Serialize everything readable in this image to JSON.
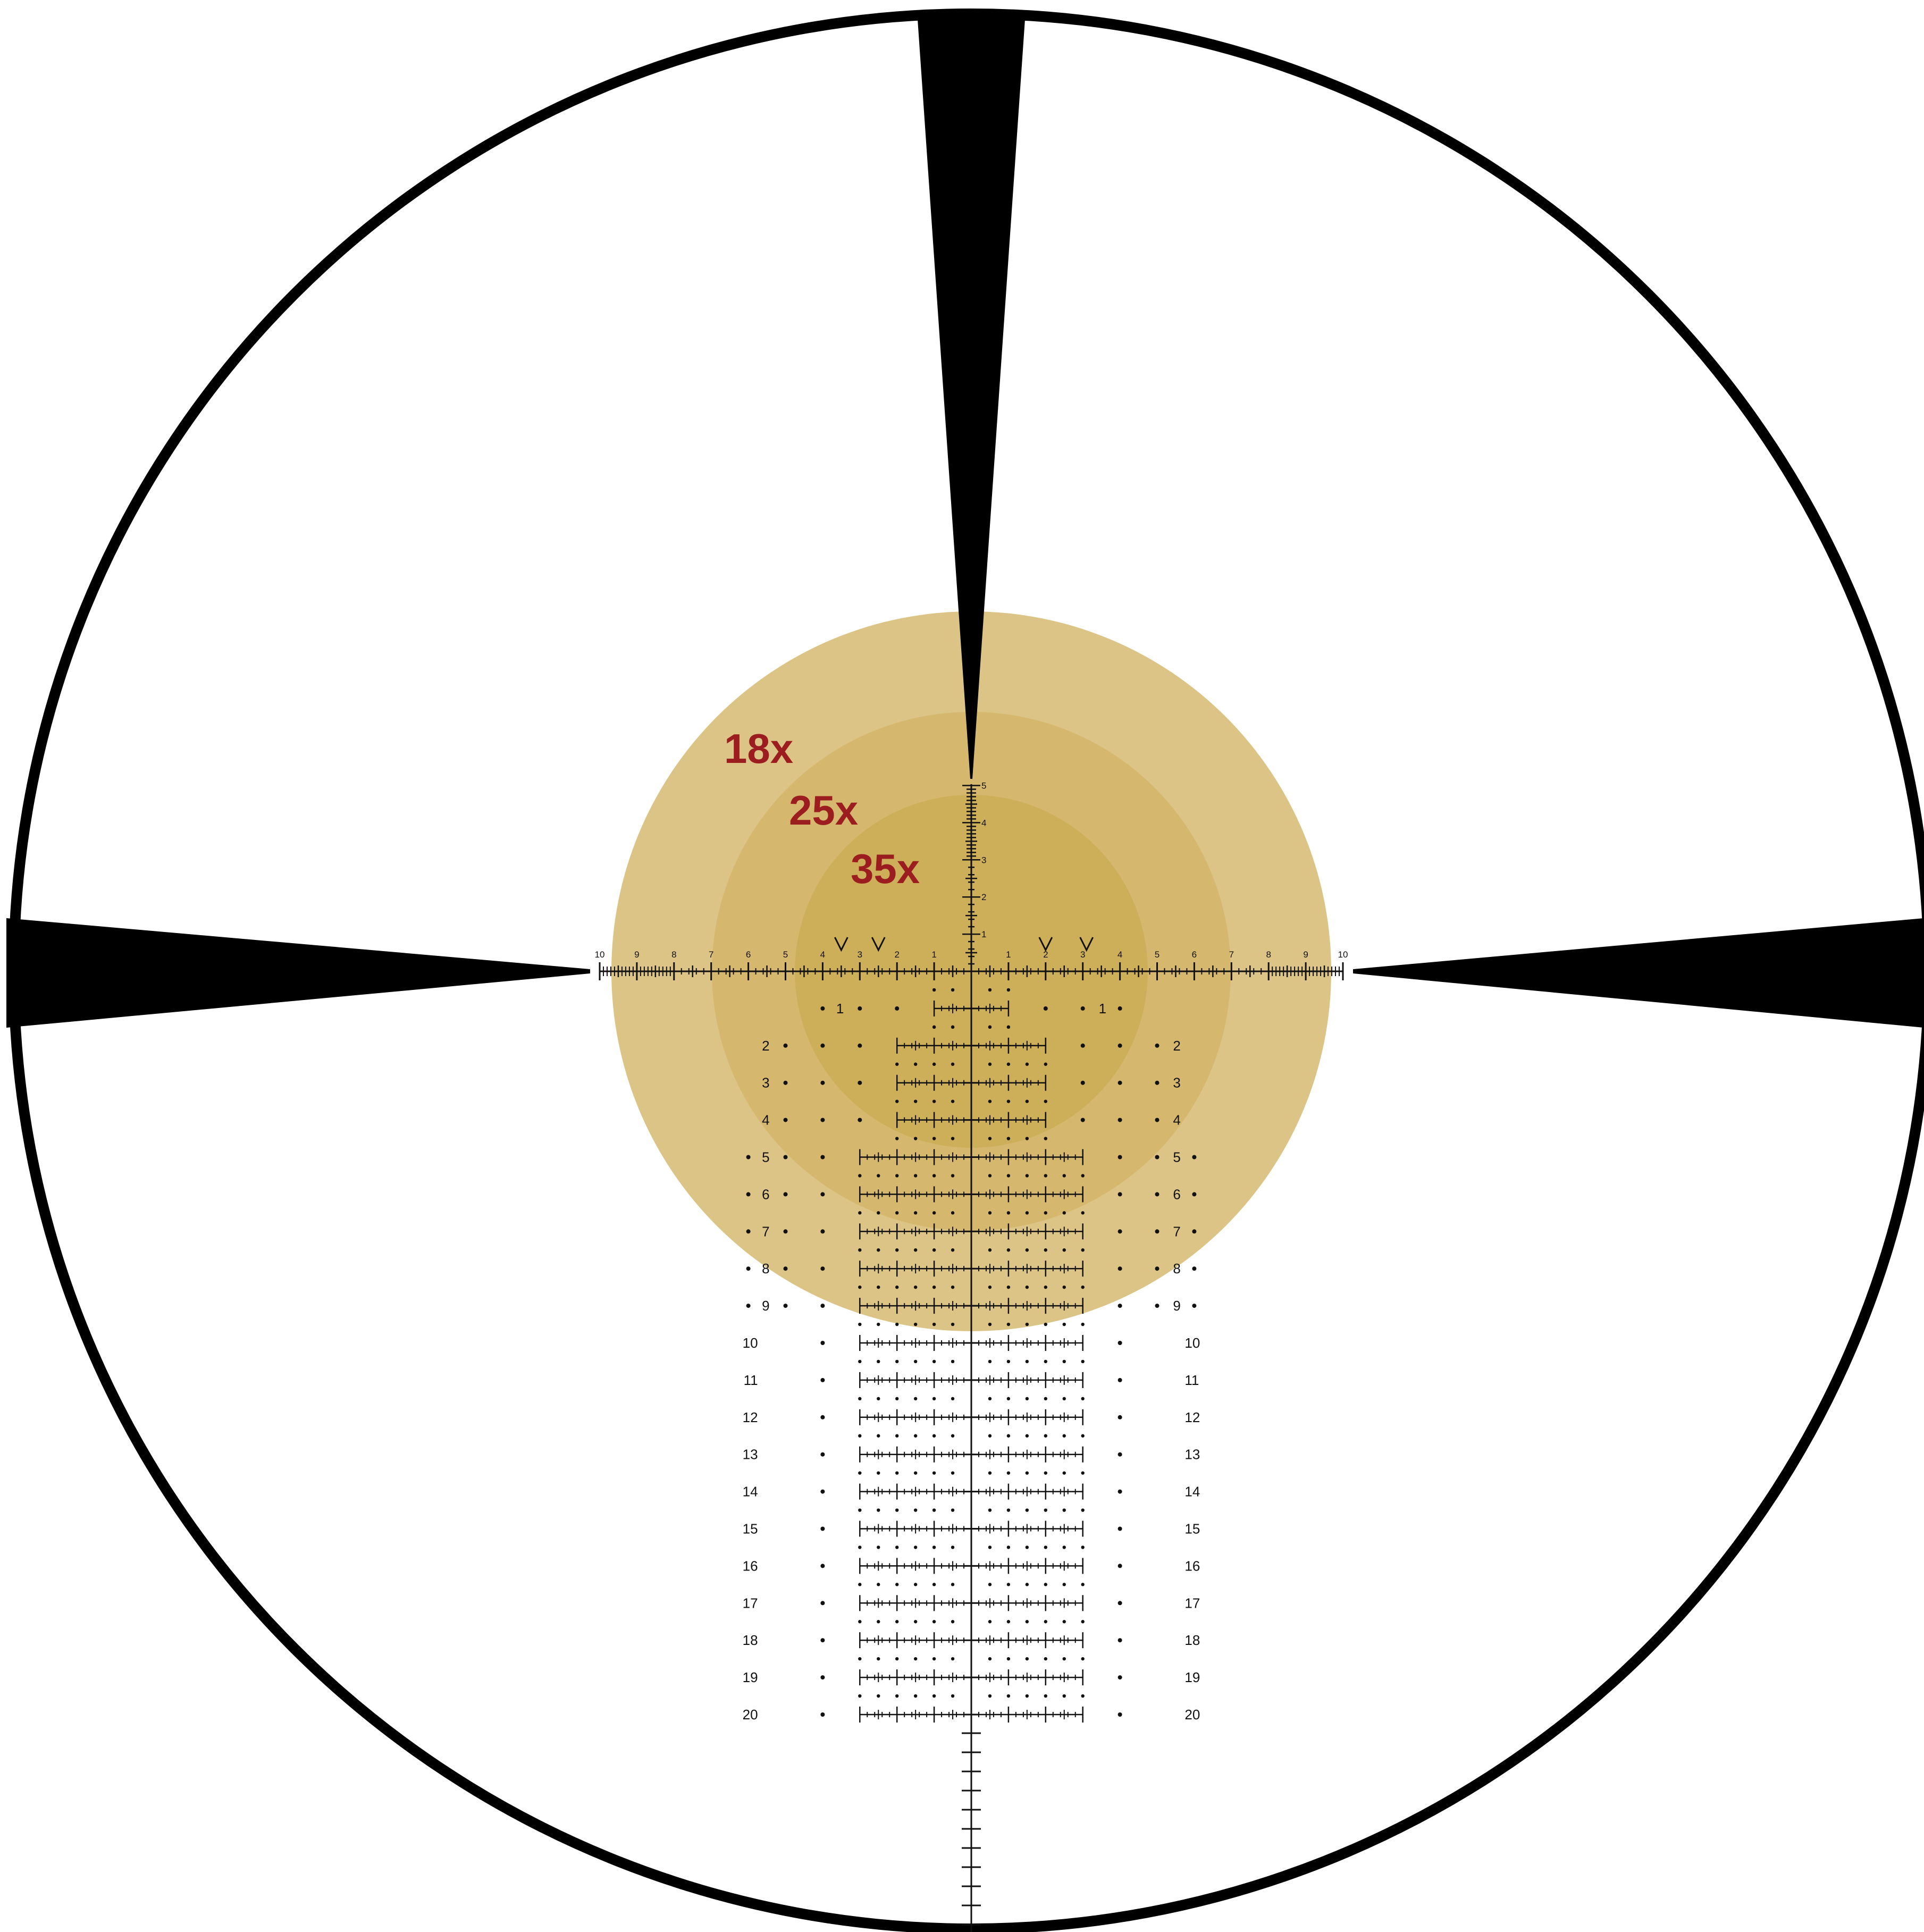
{
  "colors": {
    "background": "#ffffff",
    "ring": "#000000",
    "zone_18x": "#dbc485",
    "zone_25x": "#d5b86d",
    "zone_35x": "#cdaf59",
    "magnification_text": "#9b1d20",
    "reticle_ink": "#111111"
  },
  "magnification_labels": [
    "18x",
    "25x",
    "35x"
  ],
  "horizontal_scale": {
    "left_numbers": [
      "10",
      "9",
      "8",
      "7",
      "6",
      "5",
      "4",
      "3",
      "2",
      "1"
    ],
    "right_numbers": [
      "1",
      "2",
      "3",
      "4",
      "5",
      "6",
      "7",
      "8",
      "9",
      "10"
    ]
  },
  "vertical_scale": {
    "upper_numbers": [
      "1",
      "2",
      "3",
      "4",
      "5"
    ]
  },
  "holdover_rows": {
    "left_labels": [
      "1",
      "2",
      "3",
      "4",
      "5",
      "6",
      "7",
      "8",
      "9",
      "10",
      "11",
      "12",
      "13",
      "14",
      "15",
      "16",
      "17",
      "18",
      "19",
      "20"
    ],
    "right_labels": [
      "1",
      "2",
      "3",
      "4",
      "5",
      "6",
      "7",
      "8",
      "9",
      "10",
      "11",
      "12",
      "13",
      "14",
      "15",
      "16",
      "17",
      "18",
      "19",
      "20"
    ]
  }
}
